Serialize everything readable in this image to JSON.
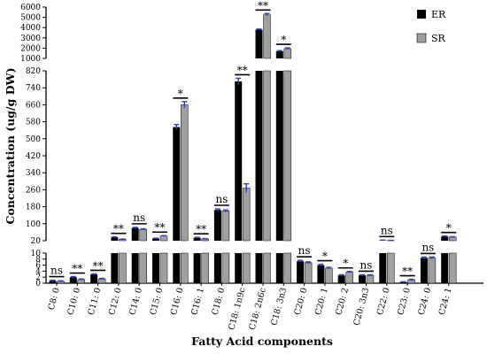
{
  "chart_data": {
    "type": "bar",
    "xlabel": "Fatty Acid components",
    "ylabel": "Concentration (ug/g DW)",
    "categories": [
      "C8: 0",
      "C10: 0",
      "C11: 0",
      "C12: 0",
      "C14: 0",
      "C15: 0",
      "C16: 0",
      "C16: 1",
      "C18: 0",
      "C18: 1n9c",
      "C18: 2n6c",
      "C18: 3n3",
      "C20: 0",
      "C20: 1",
      "C20: 2",
      "C20: 3n3",
      "C22: 0",
      "C23: 0",
      "C24: 0",
      "C24: 1"
    ],
    "series": [
      {
        "name": "ER",
        "color": "#000000",
        "values": [
          0.8,
          2.0,
          2.9,
          36,
          80,
          30,
          555,
          34,
          165,
          770,
          3800,
          1700,
          7.3,
          6.0,
          2.6,
          2.6,
          22,
          0.4,
          8.4,
          40
        ],
        "errors": [
          0.2,
          0.2,
          0.2,
          2,
          3,
          2,
          12,
          2,
          5,
          15,
          60,
          60,
          0.3,
          0.3,
          0.2,
          0.2,
          1,
          0.1,
          0.3,
          2
        ]
      },
      {
        "name": "SR",
        "color": "#a0a0a0",
        "values": [
          0.6,
          1.2,
          1.4,
          26,
          73,
          42,
          660,
          28,
          160,
          268,
          5250,
          1950,
          6.8,
          5.0,
          3.7,
          2.6,
          21,
          1.1,
          8.4,
          37
        ],
        "errors": [
          0.2,
          0.2,
          0.2,
          2,
          3,
          2,
          15,
          2,
          5,
          20,
          120,
          80,
          0.3,
          0.3,
          0.2,
          0.2,
          1,
          0.2,
          0.3,
          2
        ]
      }
    ],
    "significance": [
      "ns",
      "**",
      "**",
      "**",
      "ns",
      "**",
      "*",
      "**",
      "ns",
      "**",
      "**",
      "*",
      "ns",
      "*",
      "*",
      "ns",
      "ns",
      "**",
      "ns",
      "*"
    ],
    "error_bar_color": "#2a3fcf",
    "y_segments": [
      {
        "range": [
          0,
          10
        ],
        "ticks": [
          0,
          2,
          4,
          6,
          8,
          10
        ]
      },
      {
        "range": [
          20,
          820
        ],
        "ticks": [
          20,
          100,
          180,
          260,
          340,
          420,
          500,
          580,
          660,
          740,
          820
        ]
      },
      {
        "range": [
          1000,
          6000
        ],
        "ticks": [
          1000,
          2000,
          3000,
          4000,
          5000,
          6000
        ]
      }
    ],
    "legend_position": "top-right"
  }
}
